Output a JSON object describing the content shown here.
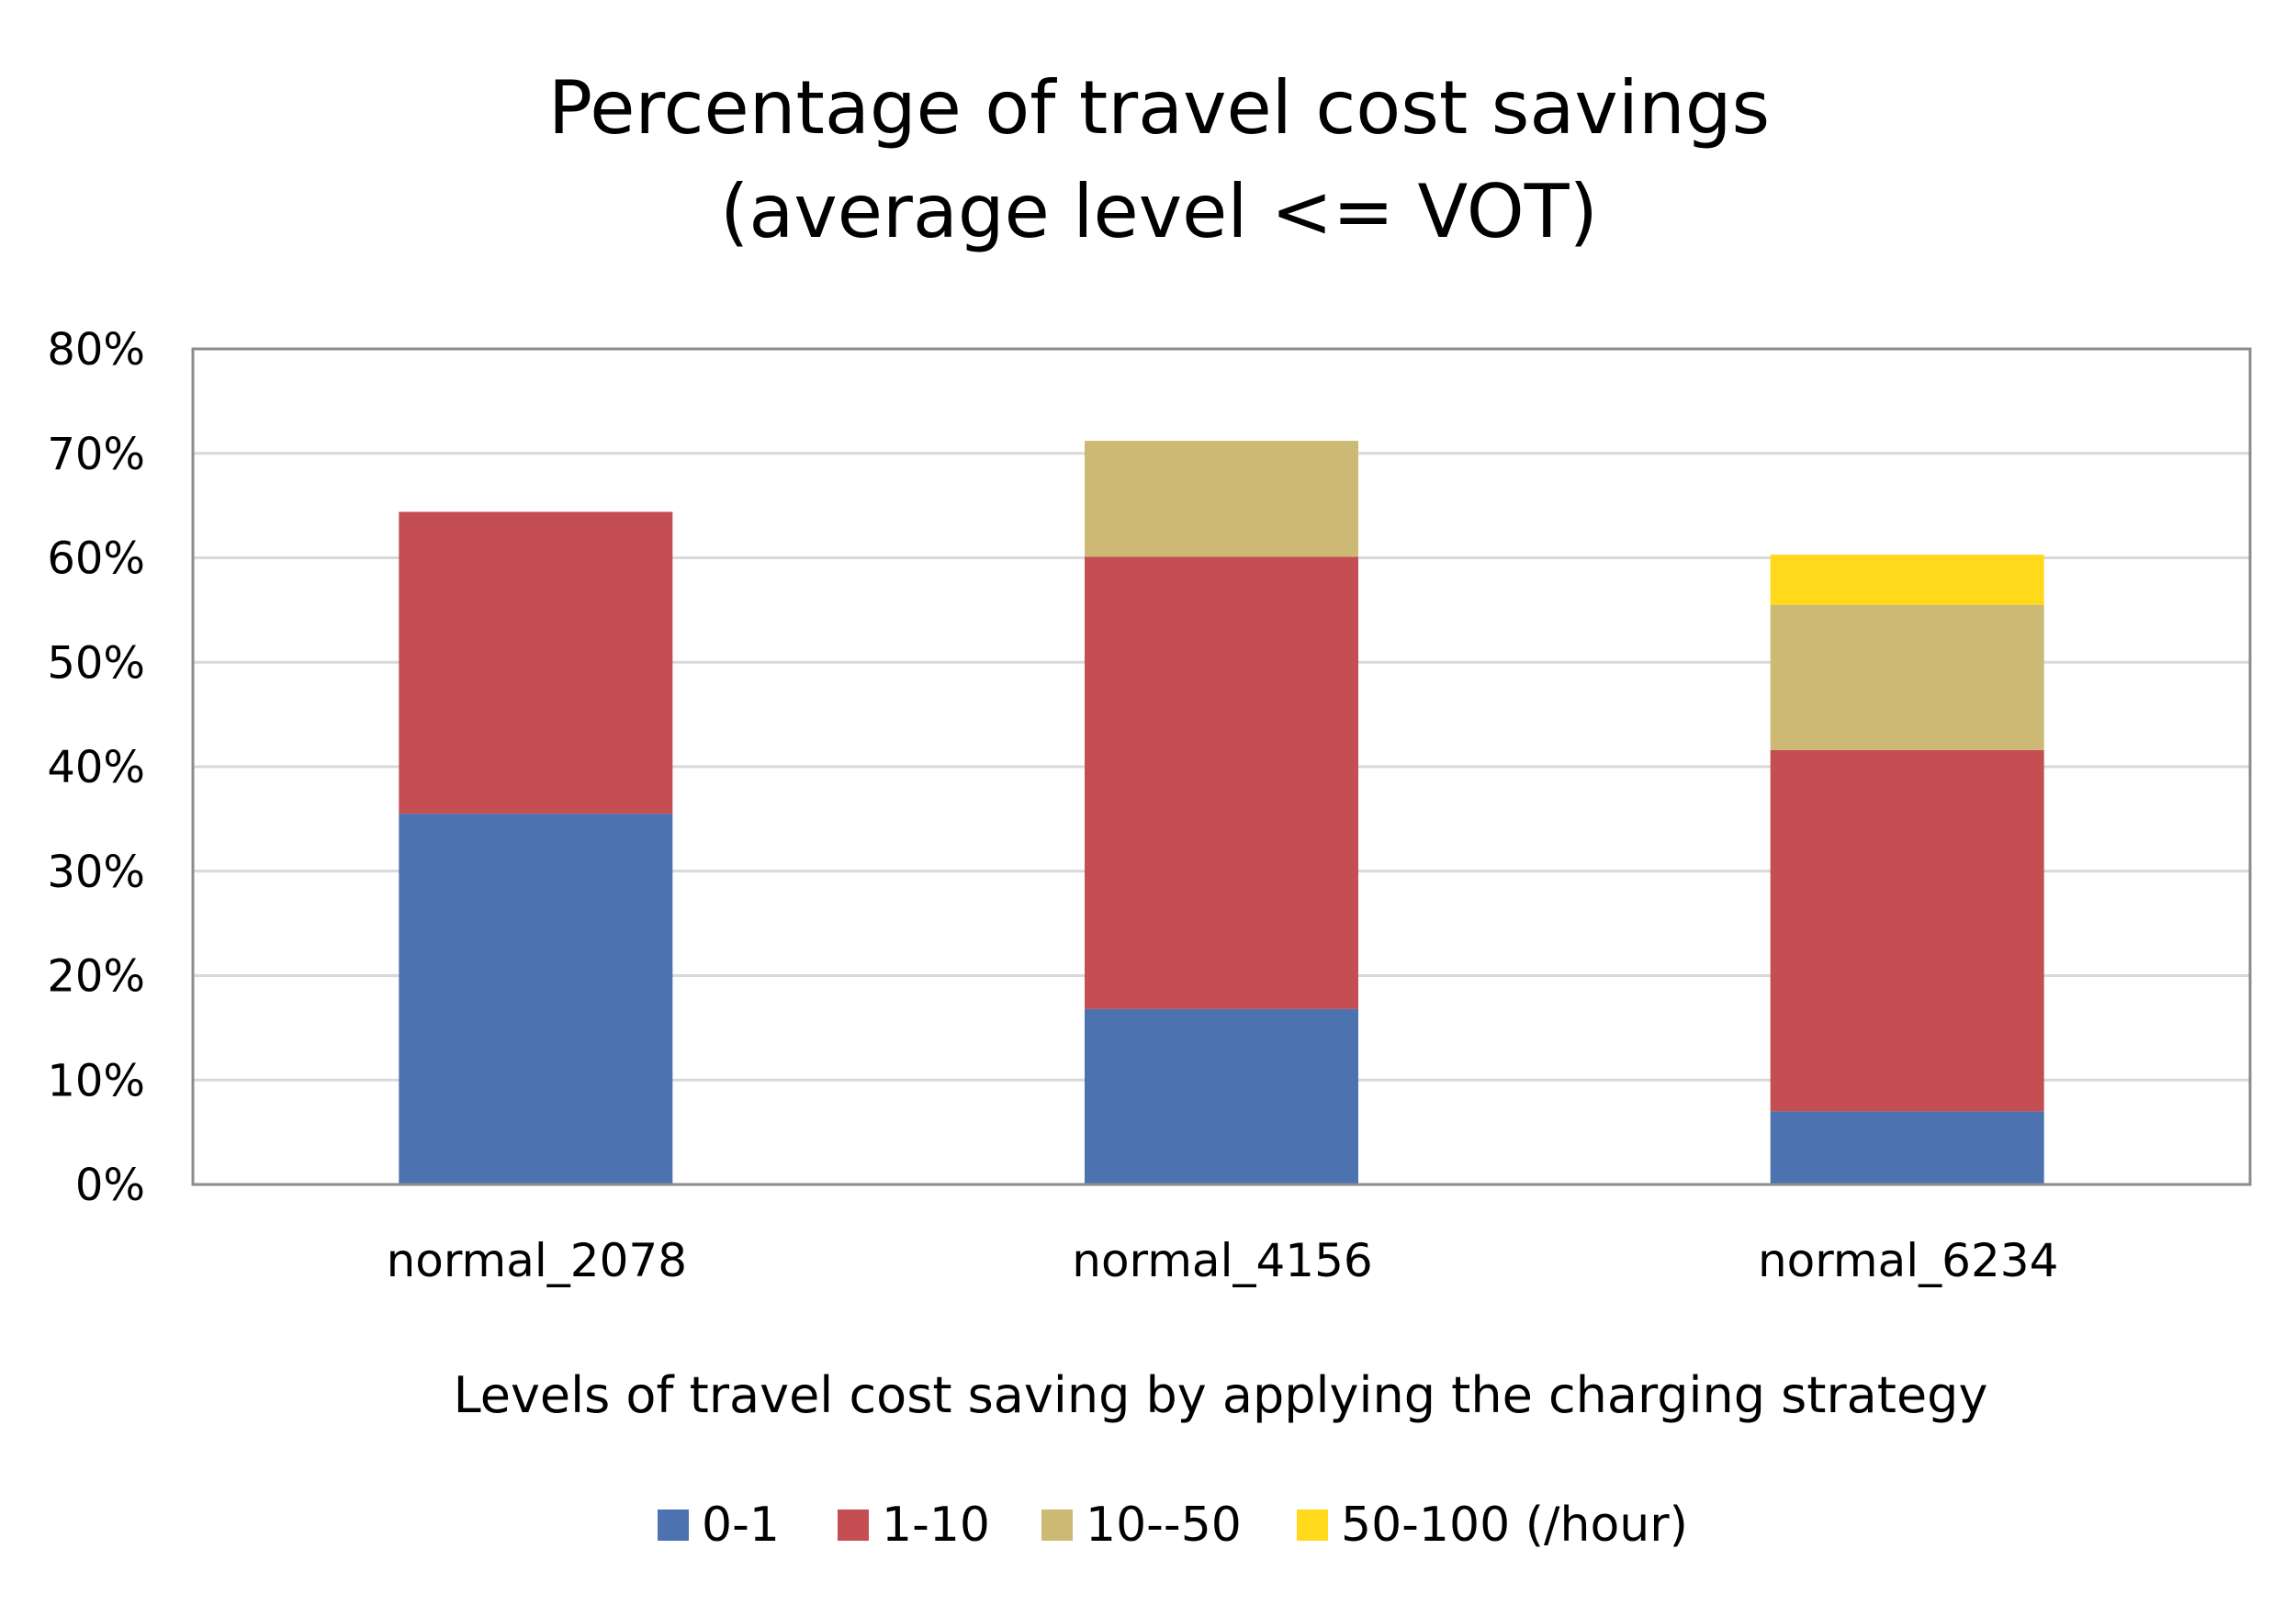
{
  "chart_data": {
    "type": "bar",
    "stacked": true,
    "title": "Percentage of travel cost savings",
    "subtitle": "(average level <= VOT)",
    "xlabel": "Levels of travel cost saving by applying the charging strategy",
    "ylabel": "",
    "ylim": [
      0,
      80
    ],
    "yticks": [
      {
        "value": 0,
        "label": "0%"
      },
      {
        "value": 10,
        "label": "10%"
      },
      {
        "value": 20,
        "label": "20%"
      },
      {
        "value": 30,
        "label": "30%"
      },
      {
        "value": 40,
        "label": "40%"
      },
      {
        "value": 50,
        "label": "50%"
      },
      {
        "value": 60,
        "label": "60%"
      },
      {
        "value": 70,
        "label": "70%"
      },
      {
        "value": 80,
        "label": "80%"
      }
    ],
    "grid": true,
    "legend_position": "bottom",
    "categories": [
      "normal_2078",
      "normal_4156",
      "normal_6234"
    ],
    "series": [
      {
        "name": "0-1",
        "color": "#4c72b0",
        "values": [
          35.5,
          16.8,
          7.0
        ]
      },
      {
        "name": "1-10",
        "color": "#c44e52",
        "values": [
          28.9,
          43.3,
          34.6
        ]
      },
      {
        "name": "10--50",
        "color": "#ccb974",
        "values": [
          0,
          11.1,
          13.9
        ]
      },
      {
        "name": "50-100 (/hour)",
        "color": "#ffd91a",
        "values": [
          0,
          0,
          4.8
        ]
      }
    ]
  }
}
